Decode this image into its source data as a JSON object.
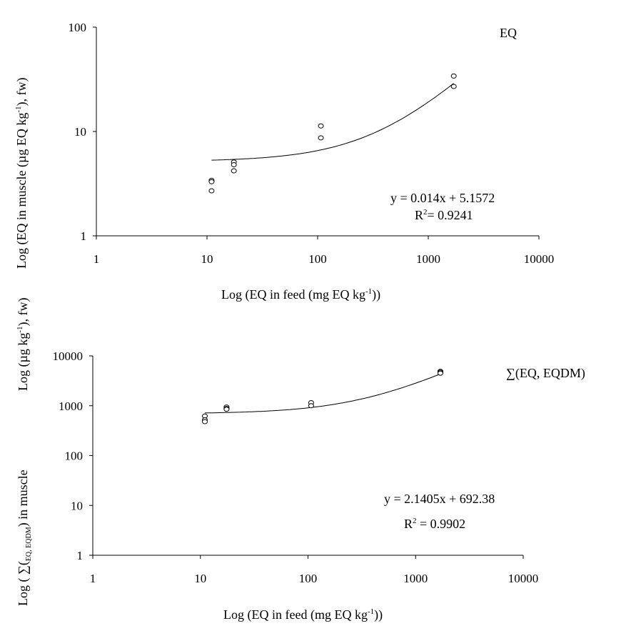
{
  "chart_data": [
    {
      "type": "scatter",
      "log_x": true,
      "log_y": true,
      "xlim": [
        1,
        10000
      ],
      "ylim": [
        1,
        100
      ],
      "x_ticks": [
        "1",
        "10",
        "100",
        "1000",
        "10000"
      ],
      "y_ticks": [
        "1",
        "10",
        "100"
      ],
      "xlabel": {
        "pre": "Log (EQ in feed (mg EQ kg",
        "sup": "-1",
        "post": "))"
      },
      "ylabel": {
        "pre": "Log (EQ in muscle (µg EQ kg",
        "sup": "-1",
        "post": "), fw)"
      },
      "legend_label": "EQ",
      "equation": "y = 0.014x + 5.1572",
      "r2": {
        "pre": "R",
        "sup": "2",
        "post": "= 0.9241"
      },
      "points": [
        {
          "x": 11,
          "y": 3.4
        },
        {
          "x": 11,
          "y": 3.3
        },
        {
          "x": 11,
          "y": 2.7
        },
        {
          "x": 17.5,
          "y": 5.1
        },
        {
          "x": 17.5,
          "y": 4.8
        },
        {
          "x": 17.5,
          "y": 4.2
        },
        {
          "x": 107,
          "y": 11.3
        },
        {
          "x": 107,
          "y": 8.7
        },
        {
          "x": 1700,
          "y": 34
        },
        {
          "x": 1700,
          "y": 27
        }
      ],
      "trend": {
        "slope": 0.014,
        "intercept": 5.1572,
        "x_from": 11,
        "x_to": 1700
      }
    },
    {
      "type": "scatter",
      "log_x": true,
      "log_y": true,
      "xlim": [
        1,
        10000
      ],
      "ylim": [
        1,
        10000
      ],
      "x_ticks": [
        "1",
        "10",
        "100",
        "1000",
        "10000"
      ],
      "y_ticks": [
        "1",
        "10",
        "100",
        "1000",
        "10000"
      ],
      "xlabel": {
        "pre": "Log (EQ in feed (mg EQ kg",
        "sup": "-1",
        "post": "))"
      },
      "ylabel_top": {
        "pre": "Log (µg kg",
        "sup": "-1",
        "post": "), fw)"
      },
      "ylabel_bottom": {
        "pre": "Log ( ∑(",
        "sub": "EQ, EQDM",
        "post": ") in muscle"
      },
      "legend_label": "∑(EQ, EQDM)",
      "equation": "y = 2.1405x + 692.38",
      "r2": {
        "pre": "R",
        "sup": "2",
        "post": " = 0.9902"
      },
      "points": [
        {
          "x": 11,
          "y": 620
        },
        {
          "x": 11,
          "y": 520
        },
        {
          "x": 11,
          "y": 480
        },
        {
          "x": 17.5,
          "y": 940
        },
        {
          "x": 17.5,
          "y": 880
        },
        {
          "x": 17.5,
          "y": 850
        },
        {
          "x": 107,
          "y": 1150
        },
        {
          "x": 107,
          "y": 1000
        },
        {
          "x": 1700,
          "y": 4900
        },
        {
          "x": 1700,
          "y": 4700
        },
        {
          "x": 1700,
          "y": 4500
        }
      ],
      "trend": {
        "slope": 2.1405,
        "intercept": 692.38,
        "x_from": 11,
        "x_to": 1700
      }
    }
  ]
}
